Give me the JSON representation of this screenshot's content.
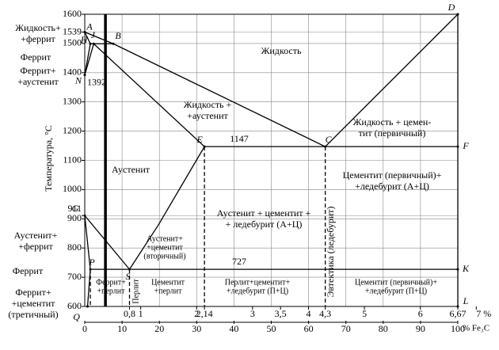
{
  "chart_data": {
    "type": "phase-diagram",
    "ylabel": "Температура, °C",
    "x2label": "% Fe₃C",
    "xlim": [
      0,
      6.67
    ],
    "xticks": [
      {
        "value": 0.8,
        "label": "0,8"
      },
      1,
      2,
      {
        "value": 2.14,
        "label": "2,14"
      },
      3,
      {
        "value": 3.5,
        "label": "3,5"
      },
      4,
      {
        "value": 4.3,
        "label": "4,3"
      },
      5,
      6,
      {
        "value": 6.67,
        "label": "6,67"
      },
      {
        "value": 7,
        "label": "7 %"
      }
    ],
    "x2lim": [
      0,
      100
    ],
    "x2ticks": [
      0,
      10,
      20,
      30,
      40,
      50,
      60,
      70,
      80,
      90,
      100
    ],
    "ylim": [
      600,
      1600
    ],
    "yticks": [
      600,
      700,
      800,
      900,
      911,
      1000,
      1100,
      1200,
      1300,
      1400,
      1500,
      1539,
      1600
    ],
    "grid": true,
    "color": "#000000",
    "points": [
      {
        "label": "A",
        "x": 0,
        "y": 1539
      },
      {
        "label": "H",
        "x": 0.1,
        "y": 1499
      },
      {
        "label": "J",
        "x": 0.16,
        "y": 1499
      },
      {
        "label": "B",
        "x": 0.51,
        "y": 1499
      },
      {
        "label": "N",
        "x": 0,
        "y": 1392
      },
      {
        "label": "G",
        "x": 0,
        "y": 911
      },
      {
        "label": "P",
        "x": 0.1,
        "y": 727
      },
      {
        "label": "S",
        "x": 0.8,
        "y": 727
      },
      {
        "label": "E",
        "x": 2.14,
        "y": 1147
      },
      {
        "label": "C",
        "x": 4.3,
        "y": 1147
      },
      {
        "label": "D",
        "x": 6.67,
        "y": 1600
      },
      {
        "label": "F",
        "x": 6.67,
        "y": 1147
      },
      {
        "label": "K",
        "x": 6.67,
        "y": 727
      },
      {
        "label": "L",
        "x": 6.67,
        "y": 600
      },
      {
        "label": "Q",
        "x": 0.05,
        "y": 600
      }
    ],
    "point_labels": [
      1392
    ],
    "isotherms": [
      1147,
      727
    ],
    "lines": [
      {
        "x": [
          0,
          0.51,
          4.3,
          6.67
        ],
        "y": [
          1539,
          1499,
          1147,
          1600
        ]
      },
      {
        "x": [
          0,
          0.1
        ],
        "y": [
          1539,
          1499
        ]
      },
      {
        "x": [
          0.1,
          0.51
        ],
        "y": [
          1499,
          1499
        ]
      },
      {
        "x": [
          0.1,
          0
        ],
        "y": [
          1499,
          1392
        ]
      },
      {
        "x": [
          0.16,
          0
        ],
        "y": [
          1499,
          1392
        ]
      },
      {
        "x": [
          0.16,
          2.14
        ],
        "y": [
          1499,
          1147
        ]
      },
      {
        "x": [
          0,
          0.8
        ],
        "y": [
          911,
          727
        ]
      },
      {
        "x": [
          0,
          0.06,
          0.1
        ],
        "y": [
          911,
          800,
          727
        ]
      },
      {
        "x": [
          0.8,
          1.32,
          2.14
        ],
        "y": [
          727,
          880,
          1147
        ]
      },
      {
        "x": [
          0.1,
          0.05
        ],
        "y": [
          727,
          600
        ]
      },
      {
        "x": [
          6.67,
          6.67
        ],
        "y": [
          1600,
          600
        ]
      },
      {
        "x": [
          2.14,
          2.14
        ],
        "y": [
          1147,
          600
        ],
        "style": "dashed"
      },
      {
        "x": [
          4.3,
          4.3
        ],
        "y": [
          1147,
          600
        ],
        "style": "dashed"
      },
      {
        "x": [
          0.8,
          0.8
        ],
        "y": [
          727,
          600
        ],
        "style": "dashed"
      },
      {
        "x": [
          0.1,
          0.1
        ],
        "y": [
          727,
          600
        ],
        "style": "dashed"
      },
      {
        "x": [
          0.37,
          0.37
        ],
        "y": [
          1600,
          600
        ],
        "style": "bold"
      }
    ],
    "regions": [
      {
        "lines": [
          "Жидкость"
        ]
      },
      {
        "lines": [
          "Жидкость +",
          "+аустенит"
        ]
      },
      {
        "lines": [
          "Жидкость + цемен-",
          "тит (первичный)"
        ]
      },
      {
        "lines": [
          "Аустенит"
        ]
      },
      {
        "lines": [
          "Цементит (первичный)+",
          "+ледебурит (А+Ц)"
        ]
      },
      {
        "lines": [
          "Аустенит + цементит +",
          "+ ледебурит (А+Ц)"
        ]
      },
      {
        "lines": [
          "Аустенит+",
          "+цементит",
          "(вторичный)"
        ]
      },
      {
        "lines": [
          "Феррит+",
          "+перлит"
        ]
      },
      {
        "lines": [
          "Перлит"
        ]
      },
      {
        "lines": [
          "Цементит",
          "+перлит"
        ]
      },
      {
        "lines": [
          "Перлит+цементит+",
          "+ледебурит (П+Ц)"
        ]
      },
      {
        "lines": [
          "Эвтектика (ледебурит)"
        ]
      },
      {
        "lines": [
          "Цементит (первичный)+",
          "+ледебурит (П+Ц)"
        ]
      },
      {
        "lines": [
          "Жидкость+",
          "+феррит"
        ]
      },
      {
        "lines": [
          "Феррит"
        ]
      },
      {
        "lines": [
          "Феррит+",
          "+аустенит"
        ]
      },
      {
        "lines": [
          "Аустенит+",
          "+феррит"
        ]
      },
      {
        "lines": [
          "Феррит"
        ]
      },
      {
        "lines": [
          "Феррит+",
          "+цементит",
          "(третичный)"
        ]
      }
    ]
  }
}
